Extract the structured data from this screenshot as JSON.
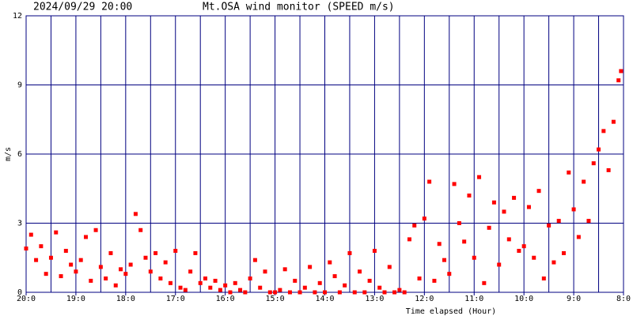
{
  "chart_data": {
    "type": "scatter",
    "title": "Mt.OSA wind monitor (SPEED m/s)",
    "subtitle": "2024/09/29 20:00",
    "xlabel": "Time elapsed (Hour)",
    "ylabel": "m/s",
    "xlim": [
      0,
      12
    ],
    "ylim": [
      0,
      12
    ],
    "xticks": [
      {
        "value": 0,
        "label": "20:0"
      },
      {
        "value": 1,
        "label": "19:0"
      },
      {
        "value": 2,
        "label": "18:0"
      },
      {
        "value": 3,
        "label": "17:0"
      },
      {
        "value": 4,
        "label": "16:0"
      },
      {
        "value": 5,
        "label": "15:0"
      },
      {
        "value": 6,
        "label": "14:0"
      },
      {
        "value": 7,
        "label": "13:0"
      },
      {
        "value": 8,
        "label": "12:0"
      },
      {
        "value": 9,
        "label": "11:0"
      },
      {
        "value": 10,
        "label": "10:0"
      },
      {
        "value": 11,
        "label": "9:0"
      },
      {
        "value": 12,
        "label": "8:0"
      }
    ],
    "x_minor_grid": [
      0.5,
      1.5,
      2.5,
      3.5,
      4.5,
      5.5,
      6.5,
      7.5,
      8.5,
      9.5,
      10.5,
      11.5
    ],
    "yticks": [
      0,
      3,
      6,
      9,
      12
    ],
    "grid": true,
    "grid_color": "#000080",
    "series": [
      {
        "color": "#ff0000",
        "x": [
          0.0,
          0.1,
          0.2,
          0.3,
          0.4,
          0.5,
          0.6,
          0.7,
          0.8,
          0.9,
          1.0,
          1.1,
          1.2,
          1.3,
          1.4,
          1.5,
          1.6,
          1.7,
          1.8,
          1.9,
          2.0,
          2.1,
          2.2,
          2.3,
          2.4,
          2.5,
          2.6,
          2.7,
          2.8,
          2.9,
          3.0,
          3.1,
          3.2,
          3.3,
          3.4,
          3.5,
          3.6,
          3.7,
          3.8,
          3.9,
          4.0,
          4.1,
          4.2,
          4.3,
          4.4,
          4.5,
          4.6,
          4.7,
          4.8,
          4.9,
          5.0,
          5.1,
          5.2,
          5.3,
          5.4,
          5.5,
          5.6,
          5.7,
          5.8,
          5.9,
          6.0,
          6.1,
          6.2,
          6.3,
          6.4,
          6.5,
          6.6,
          6.7,
          6.8,
          6.9,
          7.0,
          7.1,
          7.2,
          7.3,
          7.4,
          7.5,
          7.6,
          7.7,
          7.8,
          7.9,
          8.0,
          8.1,
          8.2,
          8.3,
          8.4,
          8.5,
          8.6,
          8.7,
          8.8,
          8.9,
          9.0,
          9.1,
          9.2,
          9.3,
          9.4,
          9.5,
          9.6,
          9.7,
          9.8,
          9.9,
          10.0,
          10.1,
          10.2,
          10.3,
          10.4,
          10.5,
          10.6,
          10.7,
          10.8,
          10.9,
          11.0,
          11.1,
          11.2,
          11.3,
          11.4,
          11.5,
          11.6,
          11.7,
          11.8,
          11.9,
          11.95
        ],
        "values": [
          1.9,
          2.5,
          1.4,
          2.0,
          0.8,
          1.5,
          2.6,
          0.7,
          1.8,
          1.2,
          0.9,
          1.4,
          2.4,
          0.5,
          2.7,
          1.1,
          0.6,
          1.7,
          0.3,
          1.0,
          0.8,
          1.2,
          3.4,
          2.7,
          1.5,
          0.9,
          1.7,
          0.6,
          1.3,
          0.4,
          1.8,
          0.2,
          0.1,
          0.9,
          1.7,
          0.4,
          0.6,
          0.2,
          0.5,
          0.1,
          0.3,
          0.0,
          0.4,
          0.1,
          0.0,
          0.6,
          1.4,
          0.2,
          0.9,
          0.0,
          0.0,
          0.1,
          1.0,
          0.0,
          0.5,
          0.0,
          0.2,
          1.1,
          0.0,
          0.4,
          0.0,
          1.3,
          0.7,
          0.0,
          0.3,
          1.7,
          0.0,
          0.9,
          0.0,
          0.5,
          1.8,
          0.2,
          0.0,
          1.1,
          0.0,
          0.1,
          0.0,
          2.3,
          2.9,
          0.6,
          3.2,
          4.8,
          0.5,
          2.1,
          1.4,
          0.8,
          4.7,
          3.0,
          2.2,
          4.2,
          1.5,
          5.0,
          0.4,
          2.8,
          3.9,
          1.2,
          3.5,
          2.3,
          4.1,
          1.8,
          2.0,
          3.7,
          1.5,
          4.4,
          0.6,
          2.9,
          1.3,
          3.1,
          1.7,
          5.2,
          3.6,
          2.4,
          4.8,
          3.1,
          5.6,
          6.2,
          7.0,
          5.3,
          7.4,
          9.2,
          9.6
        ]
      }
    ]
  }
}
